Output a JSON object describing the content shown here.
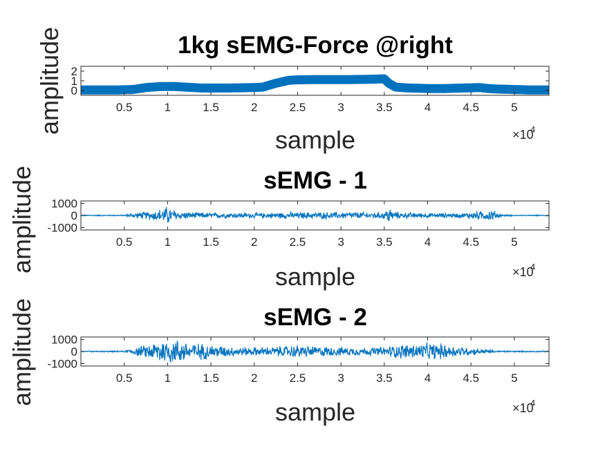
{
  "chart_data": [
    {
      "type": "scatter",
      "title": "1kg sEMG-Force @right",
      "xlabel": "sample",
      "ylabel": "amplitude",
      "x_exponent_label": "×10",
      "x_exponent": "4",
      "xlim": [
        0,
        54000
      ],
      "ylim": [
        -0.5,
        2.5
      ],
      "xticks": [
        5000,
        10000,
        15000,
        20000,
        25000,
        30000,
        35000,
        40000,
        45000,
        50000
      ],
      "xtick_labels": [
        "0.5",
        "1",
        "1.5",
        "2",
        "2.5",
        "3",
        "3.5",
        "4",
        "4.5",
        "5"
      ],
      "yticks": [
        0,
        1,
        2
      ],
      "ytick_labels": [
        "0",
        "1",
        "2"
      ],
      "color": "#0072BD",
      "series": [
        {
          "x": [
            0,
            4000,
            6000,
            7500,
            9000,
            10500,
            12000,
            14000,
            17000,
            20000,
            21000,
            22500,
            24000,
            25000,
            27000,
            30000,
            33000,
            35000,
            35500,
            36300,
            37000,
            38000,
            40000,
            42000,
            44000,
            46000,
            47000,
            48000,
            50000,
            52000,
            54000
          ],
          "y": [
            0.05,
            0.05,
            0.1,
            0.3,
            0.4,
            0.42,
            0.35,
            0.25,
            0.25,
            0.3,
            0.35,
            0.75,
            1.05,
            1.1,
            1.12,
            1.12,
            1.15,
            1.2,
            0.75,
            0.35,
            0.3,
            0.25,
            0.2,
            0.2,
            0.25,
            0.3,
            0.2,
            0.15,
            0.1,
            0.05,
            0.05
          ]
        }
      ]
    },
    {
      "type": "line",
      "title": "sEMG - 1",
      "xlabel": "sample",
      "ylabel": "amplitude",
      "x_exponent_label": "×10",
      "x_exponent": "4",
      "xlim": [
        0,
        54000
      ],
      "ylim": [
        -1200,
        1200
      ],
      "xticks": [
        5000,
        10000,
        15000,
        20000,
        25000,
        30000,
        35000,
        40000,
        45000,
        50000
      ],
      "xtick_labels": [
        "0.5",
        "1",
        "1.5",
        "2",
        "2.5",
        "3",
        "3.5",
        "4",
        "4.5",
        "5"
      ],
      "yticks": [
        1000,
        0,
        -1000
      ],
      "ytick_labels": [
        "1000",
        "0",
        "-1000"
      ],
      "color": "#0072BD",
      "envelope": {
        "x": [
          0,
          5000,
          6000,
          7000,
          8500,
          9500,
          10000,
          10500,
          11500,
          13000,
          15000,
          17000,
          19000,
          21000,
          23000,
          25000,
          27000,
          29000,
          31000,
          33000,
          35000,
          35500,
          36000,
          38000,
          40000,
          42000,
          44000,
          45500,
          46500,
          47500,
          48500,
          50000,
          54000
        ],
        "amp": [
          50,
          60,
          250,
          320,
          500,
          700,
          900,
          600,
          400,
          300,
          260,
          250,
          260,
          250,
          300,
          290,
          330,
          320,
          360,
          300,
          320,
          950,
          350,
          260,
          230,
          220,
          220,
          400,
          450,
          550,
          100,
          50,
          50
        ]
      }
    },
    {
      "type": "line",
      "title": "sEMG - 2",
      "xlabel": "sample",
      "ylabel": "amplitude",
      "x_exponent_label": "×10",
      "x_exponent": "4",
      "xlim": [
        0,
        54000
      ],
      "ylim": [
        -1200,
        1200
      ],
      "xticks": [
        5000,
        10000,
        15000,
        20000,
        25000,
        30000,
        35000,
        40000,
        45000,
        50000
      ],
      "xtick_labels": [
        "0.5",
        "1",
        "1.5",
        "2",
        "2.5",
        "3",
        "3.5",
        "4",
        "4.5",
        "5"
      ],
      "yticks": [
        1000,
        0,
        -1000
      ],
      "ytick_labels": [
        "1000",
        "0",
        "-1000"
      ],
      "color": "#0072BD",
      "envelope": {
        "x": [
          0,
          5000,
          6000,
          7000,
          8500,
          9000,
          10000,
          11000,
          12000,
          13500,
          15000,
          17000,
          19000,
          21000,
          23000,
          25000,
          27000,
          29000,
          31000,
          33000,
          35000,
          36000,
          37000,
          39000,
          41000,
          42000,
          43000,
          45000,
          47000,
          48000,
          54000
        ],
        "amp": [
          50,
          60,
          350,
          500,
          900,
          1200,
          1200,
          1150,
          1000,
          800,
          650,
          500,
          400,
          420,
          500,
          600,
          500,
          450,
          400,
          400,
          450,
          600,
          700,
          750,
          800,
          700,
          550,
          350,
          200,
          80,
          50
        ]
      }
    }
  ]
}
